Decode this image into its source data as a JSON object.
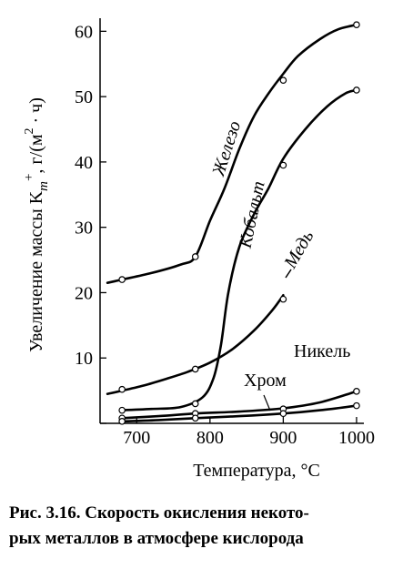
{
  "chart_data": {
    "type": "line",
    "xlabel": "Температура, °C",
    "ylabel": "Увеличение массы K",
    "ylabel_sub": "m",
    "ylabel_sup": "+",
    "ylabel_unit": ", г/(м",
    "ylabel_unit_sup": "2",
    "ylabel_unit_tail": " · ч)",
    "xlim": [
      650,
      1010
    ],
    "ylim": [
      0,
      62
    ],
    "xticks": [
      700,
      800,
      900,
      1000
    ],
    "yticks": [
      0,
      10,
      20,
      30,
      40,
      50,
      60
    ],
    "ytick_labels": [
      "",
      "10",
      "20",
      "30",
      "40",
      "50",
      "60"
    ],
    "grid": false,
    "series": [
      {
        "name": "Железо",
        "points": [
          [
            680,
            22
          ],
          [
            780,
            25.5
          ],
          [
            900,
            52.5
          ],
          [
            1000,
            61
          ]
        ],
        "curve": [
          [
            660,
            21.5
          ],
          [
            680,
            22
          ],
          [
            720,
            23
          ],
          [
            760,
            24.3
          ],
          [
            780,
            25.5
          ],
          [
            800,
            31
          ],
          [
            820,
            36
          ],
          [
            840,
            42
          ],
          [
            860,
            47
          ],
          [
            880,
            50.5
          ],
          [
            900,
            53.5
          ],
          [
            920,
            56.2
          ],
          [
            950,
            58.8
          ],
          [
            975,
            60.3
          ],
          [
            1000,
            61
          ]
        ]
      },
      {
        "name": "Кобальт",
        "points": [
          [
            680,
            2
          ],
          [
            780,
            3
          ],
          [
            900,
            39.5
          ],
          [
            1000,
            51
          ]
        ],
        "curve": [
          [
            680,
            2
          ],
          [
            720,
            2.2
          ],
          [
            760,
            2.5
          ],
          [
            790,
            4
          ],
          [
            805,
            7
          ],
          [
            815,
            12
          ],
          [
            825,
            20
          ],
          [
            840,
            27
          ],
          [
            860,
            32
          ],
          [
            880,
            36
          ],
          [
            900,
            40.5
          ],
          [
            930,
            45
          ],
          [
            960,
            48.5
          ],
          [
            985,
            50.5
          ],
          [
            1000,
            51
          ]
        ]
      },
      {
        "name": "Медь",
        "points": [
          [
            680,
            5.2
          ],
          [
            780,
            8.3
          ],
          [
            900,
            19
          ]
        ],
        "curve": [
          [
            660,
            4.5
          ],
          [
            680,
            5
          ],
          [
            710,
            5.8
          ],
          [
            740,
            6.8
          ],
          [
            770,
            7.9
          ],
          [
            800,
            9.3
          ],
          [
            830,
            11.3
          ],
          [
            860,
            14.2
          ],
          [
            885,
            17.3
          ],
          [
            900,
            19.6
          ]
        ]
      },
      {
        "name": "Никель",
        "points": [
          [
            680,
            0.8
          ],
          [
            780,
            1.5
          ],
          [
            900,
            2.2
          ],
          [
            1000,
            4.9
          ]
        ],
        "curve": [
          [
            680,
            0.8
          ],
          [
            730,
            1.1
          ],
          [
            780,
            1.5
          ],
          [
            840,
            1.8
          ],
          [
            900,
            2.3
          ],
          [
            950,
            3.2
          ],
          [
            1000,
            4.9
          ]
        ]
      },
      {
        "name": "Хром",
        "points": [
          [
            680,
            0.3
          ],
          [
            780,
            0.8
          ],
          [
            900,
            1.5
          ],
          [
            1000,
            2.7
          ]
        ],
        "curve": [
          [
            680,
            0.3
          ],
          [
            730,
            0.5
          ],
          [
            780,
            0.8
          ],
          [
            840,
            1.1
          ],
          [
            900,
            1.5
          ],
          [
            950,
            2
          ],
          [
            1000,
            2.7
          ]
        ]
      }
    ]
  },
  "caption": {
    "line1": "Рис. 3.16. Скорость окисления некото-",
    "line2": "рых металлов в атмосфере кислорода"
  }
}
